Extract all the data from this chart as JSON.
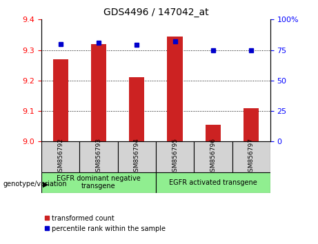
{
  "title": "GDS4496 / 147042_at",
  "samples": [
    "GSM856792",
    "GSM856793",
    "GSM856794",
    "GSM856795",
    "GSM856796",
    "GSM856797"
  ],
  "red_values": [
    9.27,
    9.32,
    9.21,
    9.345,
    9.055,
    9.11
  ],
  "blue_values": [
    80,
    81,
    79,
    82,
    75,
    75
  ],
  "ylim_left": [
    9.0,
    9.4
  ],
  "ylim_right": [
    0,
    100
  ],
  "yticks_left": [
    9.0,
    9.1,
    9.2,
    9.3,
    9.4
  ],
  "yticks_right": [
    0,
    25,
    50,
    75,
    100
  ],
  "group1_label": "EGFR dominant negative\ntransgene",
  "group2_label": "EGFR activated transgene",
  "group1_indices": [
    0,
    1,
    2
  ],
  "group2_indices": [
    3,
    4,
    5
  ],
  "legend_red": "transformed count",
  "legend_blue": "percentile rank within the sample",
  "genotype_label": "genotype/variation",
  "bar_color": "#cc2222",
  "dot_color": "#0000cc",
  "group1_bg": "#90ee90",
  "group2_bg": "#90ee90",
  "sample_bg": "#d3d3d3",
  "bar_width": 0.4
}
